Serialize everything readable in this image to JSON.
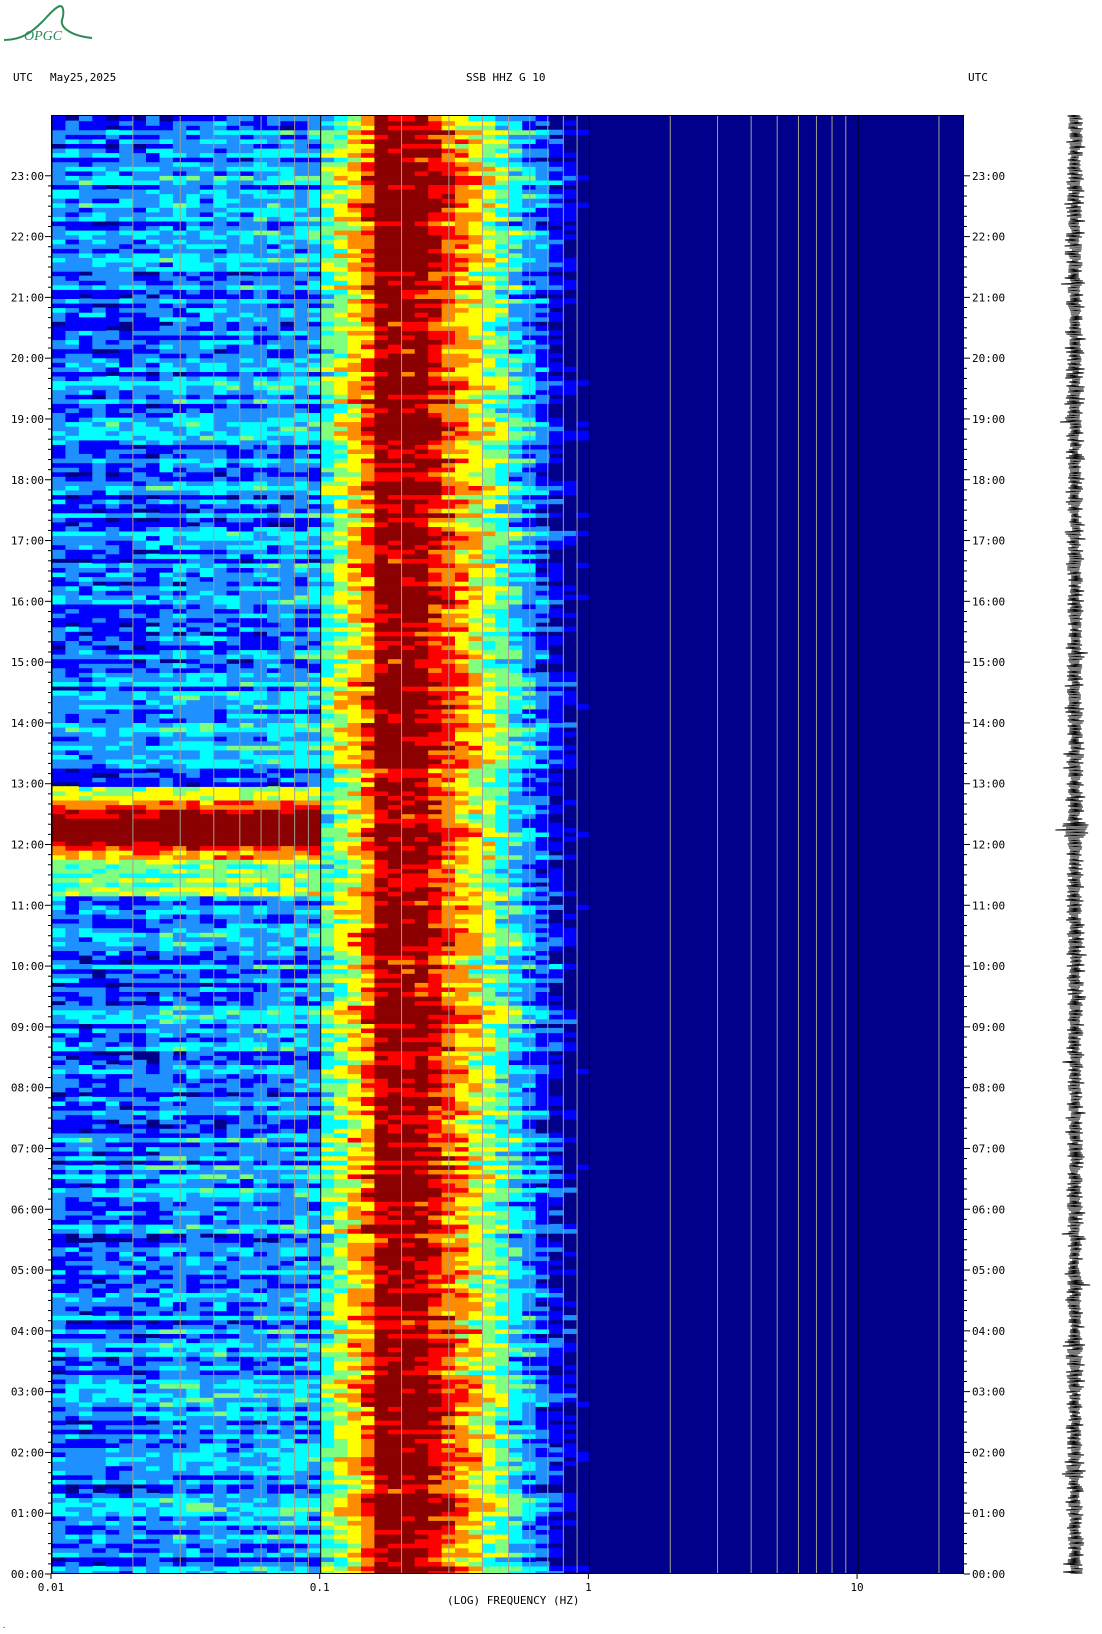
{
  "header": {
    "utc_left": "UTC",
    "date": "May25,2025",
    "station": "SSB HHZ G 10",
    "utc_right": "UTC"
  },
  "logo": {
    "text": "OPGC",
    "color": "#2e8b57"
  },
  "footer": {
    "mark": "·"
  },
  "chart_data": {
    "type": "heatmap",
    "title": "SSB HHZ G 10",
    "xlabel": "(LOG) FREQUENCY (HZ)",
    "ylabel": "UTC",
    "x_scale": "log",
    "xlim": [
      0.01,
      25
    ],
    "x_ticks": [
      "0.01",
      "0.1",
      "1",
      "10"
    ],
    "x_tick_values": [
      0.01,
      0.1,
      1,
      10
    ],
    "ylim_hours": [
      0,
      24
    ],
    "y_ticks": [
      "00:00",
      "01:00",
      "02:00",
      "03:00",
      "04:00",
      "05:00",
      "06:00",
      "07:00",
      "08:00",
      "09:00",
      "10:00",
      "11:00",
      "12:00",
      "13:00",
      "14:00",
      "15:00",
      "16:00",
      "17:00",
      "18:00",
      "19:00",
      "20:00",
      "21:00",
      "22:00",
      "23:00"
    ],
    "colormap": [
      "#00008b",
      "#0000ff",
      "#1e90ff",
      "#00ffff",
      "#7fff7f",
      "#ffff00",
      "#ff8c00",
      "#ff0000",
      "#8b0000"
    ],
    "vertical_grid_hz": [
      0.02,
      0.03,
      0.04,
      0.05,
      0.06,
      0.07,
      0.08,
      0.09,
      0.2,
      0.3,
      0.4,
      0.5,
      0.6,
      0.7,
      0.8,
      0.9,
      2,
      3,
      4,
      5,
      6,
      7,
      8,
      9,
      20
    ],
    "band_max_energy_hz": [
      0.15,
      0.25
    ],
    "event_window_utc": [
      "11:10",
      "13:00"
    ],
    "seismogram_event_utc": "12:15"
  }
}
